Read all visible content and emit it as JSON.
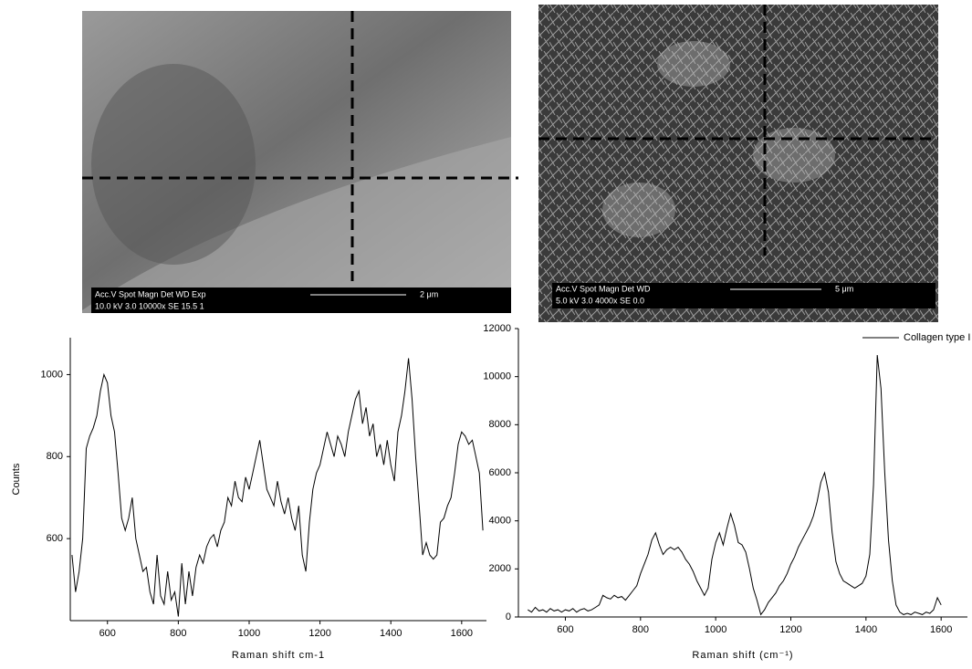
{
  "images": [
    {
      "info_header": "Acc.V  Spot Magn   Det  WD  Exp",
      "info_values": "10.0 kV 3.0  10000x  SE  15.5  1",
      "scale": "2 μm"
    },
    {
      "info_header": "Acc.V  Spot Magn   Det  WD",
      "info_values": "5.0 kV 3.0  4000x   SE  0.0",
      "scale": "5 μm"
    }
  ],
  "chart_data": [
    {
      "type": "line",
      "ylabel": "Counts",
      "xlabel": "Raman shift cm-1",
      "xlim": [
        495,
        1670
      ],
      "ylim": [
        400,
        1090
      ],
      "xticks": [
        600,
        800,
        1000,
        1200,
        1400,
        1600
      ],
      "yticks": [
        600,
        800,
        1000
      ],
      "x": [
        500,
        510,
        520,
        530,
        540,
        550,
        560,
        570,
        580,
        590,
        600,
        610,
        620,
        630,
        640,
        650,
        660,
        670,
        680,
        690,
        700,
        710,
        720,
        730,
        740,
        750,
        760,
        770,
        780,
        790,
        800,
        810,
        820,
        830,
        840,
        850,
        860,
        870,
        880,
        890,
        900,
        910,
        920,
        930,
        940,
        950,
        960,
        970,
        980,
        990,
        1000,
        1010,
        1020,
        1030,
        1040,
        1050,
        1060,
        1070,
        1080,
        1090,
        1100,
        1110,
        1120,
        1130,
        1140,
        1150,
        1160,
        1170,
        1180,
        1190,
        1200,
        1210,
        1220,
        1230,
        1240,
        1250,
        1260,
        1270,
        1280,
        1290,
        1300,
        1310,
        1320,
        1330,
        1340,
        1350,
        1360,
        1370,
        1380,
        1390,
        1400,
        1410,
        1420,
        1430,
        1440,
        1450,
        1460,
        1470,
        1480,
        1490,
        1500,
        1510,
        1520,
        1530,
        1540,
        1550,
        1560,
        1570,
        1580,
        1590,
        1600,
        1610,
        1620,
        1630,
        1640,
        1650,
        1660
      ],
      "series": [
        {
          "color": "#000000",
          "values": [
            560,
            470,
            520,
            600,
            820,
            850,
            870,
            900,
            960,
            1000,
            980,
            900,
            860,
            760,
            650,
            620,
            650,
            700,
            600,
            560,
            520,
            530,
            470,
            440,
            560,
            460,
            440,
            520,
            450,
            470,
            410,
            540,
            440,
            520,
            460,
            530,
            560,
            540,
            580,
            600,
            610,
            580,
            620,
            640,
            700,
            680,
            740,
            700,
            690,
            750,
            720,
            760,
            800,
            840,
            780,
            720,
            700,
            680,
            740,
            690,
            660,
            700,
            650,
            620,
            680,
            560,
            520,
            640,
            720,
            760,
            780,
            820,
            860,
            830,
            800,
            850,
            830,
            800,
            860,
            900,
            940,
            960,
            880,
            920,
            850,
            880,
            800,
            830,
            780,
            840,
            780,
            740,
            860,
            900,
            960,
            1040,
            940,
            800,
            680,
            560,
            590,
            560,
            550,
            560,
            640,
            650,
            680,
            700,
            760,
            830,
            860,
            850,
            830,
            840,
            800,
            760,
            620
          ]
        }
      ]
    },
    {
      "type": "line",
      "xlabel": "Raman shift (cm⁻¹)",
      "legend": "upper right",
      "xlim": [
        475,
        1670
      ],
      "ylim": [
        0,
        12000
      ],
      "xticks": [
        600,
        800,
        1000,
        1200,
        1400,
        1600
      ],
      "yticks": [
        0,
        2000,
        4000,
        6000,
        8000,
        10000,
        12000
      ],
      "x": [
        500,
        510,
        520,
        530,
        540,
        550,
        560,
        570,
        580,
        590,
        600,
        610,
        620,
        630,
        640,
        650,
        660,
        670,
        680,
        690,
        700,
        710,
        720,
        730,
        740,
        750,
        760,
        770,
        780,
        790,
        800,
        810,
        820,
        830,
        840,
        850,
        860,
        870,
        880,
        890,
        900,
        910,
        920,
        930,
        940,
        950,
        960,
        970,
        980,
        990,
        1000,
        1010,
        1020,
        1030,
        1040,
        1050,
        1060,
        1070,
        1080,
        1090,
        1100,
        1110,
        1120,
        1130,
        1140,
        1150,
        1160,
        1170,
        1180,
        1190,
        1200,
        1210,
        1220,
        1230,
        1240,
        1250,
        1260,
        1270,
        1280,
        1290,
        1300,
        1310,
        1320,
        1330,
        1340,
        1350,
        1360,
        1370,
        1380,
        1390,
        1400,
        1410,
        1420,
        1430,
        1440,
        1450,
        1460,
        1470,
        1480,
        1490,
        1500,
        1510,
        1520,
        1530,
        1540,
        1550,
        1560,
        1570,
        1580,
        1590,
        1600
      ],
      "series": [
        {
          "name": "Collagen type I",
          "color": "#000000",
          "values": [
            300,
            200,
            400,
            250,
            300,
            200,
            350,
            250,
            300,
            200,
            300,
            250,
            350,
            200,
            300,
            350,
            250,
            300,
            400,
            500,
            900,
            800,
            750,
            900,
            800,
            850,
            700,
            900,
            1100,
            1300,
            1800,
            2200,
            2600,
            3200,
            3500,
            3000,
            2600,
            2800,
            2900,
            2800,
            2900,
            2700,
            2400,
            2200,
            1900,
            1500,
            1200,
            900,
            1200,
            2400,
            3100,
            3500,
            3000,
            3700,
            4300,
            3800,
            3100,
            3000,
            2700,
            2000,
            1200,
            700,
            100,
            300,
            600,
            800,
            1000,
            1300,
            1500,
            1800,
            2200,
            2500,
            2900,
            3200,
            3500,
            3800,
            4200,
            4800,
            5600,
            6000,
            5200,
            3500,
            2300,
            1800,
            1500,
            1400,
            1300,
            1200,
            1300,
            1400,
            1700,
            2600,
            5500,
            10900,
            9500,
            6000,
            3200,
            1500,
            500,
            200,
            100,
            150,
            100,
            200,
            150,
            100,
            200,
            150,
            300,
            800,
            500
          ]
        }
      ]
    }
  ]
}
